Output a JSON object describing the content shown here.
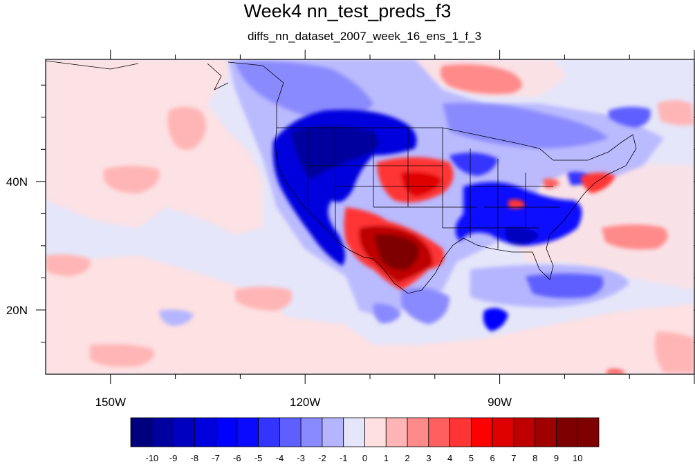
{
  "title": "Week4 nn_test_preds_f3",
  "subtitle": "diffs_nn_dataset_2007_week_16_ens_1_f_3",
  "map": {
    "projection": "cylindrical-equidistant",
    "lon_range": [
      -160,
      -60
    ],
    "lat_range": [
      10,
      59
    ],
    "x_tick_labels": [
      {
        "lon": -150,
        "label": "150W"
      },
      {
        "lon": -120,
        "label": "120W"
      },
      {
        "lon": -90,
        "label": "90W"
      }
    ],
    "y_tick_labels": [
      {
        "lat": 40,
        "label": "40N"
      },
      {
        "lat": 20,
        "label": "20N"
      }
    ],
    "background_color": "#e6e6fa"
  },
  "colorbar": {
    "labels": [
      "-10",
      "-9",
      "-8",
      "-7",
      "-6",
      "-5",
      "-4",
      "-3",
      "-2",
      "-1",
      "0",
      "1",
      "2",
      "3",
      "4",
      "5",
      "6",
      "7",
      "8",
      "9",
      "10"
    ],
    "colors": [
      "#00007f",
      "#00009f",
      "#0000bf",
      "#0000df",
      "#0000ff",
      "#0a0aff",
      "#3434ff",
      "#5f5fff",
      "#8a8aff",
      "#b5b5ff",
      "#e6e6fa",
      "#ffe0e0",
      "#ffb5b5",
      "#ff8a8a",
      "#ff5f5f",
      "#ff3434",
      "#ff0000",
      "#df0000",
      "#bf0000",
      "#9f0000",
      "#7f0000",
      "#7f0000"
    ]
  },
  "colors": {
    "strong_blue": "#0000df",
    "strong_red": "#bf0000",
    "neutral": "#e6e6fa"
  }
}
